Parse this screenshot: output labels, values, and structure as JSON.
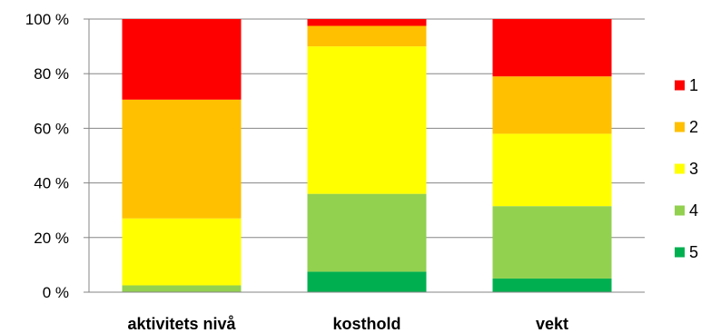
{
  "chart_data": {
    "type": "bar",
    "stacked": true,
    "percent_stacked": true,
    "categories": [
      "aktivitets nivå",
      "kosthold",
      "vekt"
    ],
    "series": [
      {
        "name": "5",
        "color": "#00B050",
        "values": [
          0,
          7.5,
          5
        ]
      },
      {
        "name": "4",
        "color": "#92D050",
        "values": [
          2.5,
          28.5,
          26.5
        ]
      },
      {
        "name": "3",
        "color": "#FFFF00",
        "values": [
          24.5,
          54,
          26.5
        ]
      },
      {
        "name": "2",
        "color": "#FFC000",
        "values": [
          43.5,
          7.5,
          21
        ]
      },
      {
        "name": "1",
        "color": "#FF0000",
        "values": [
          29.5,
          2.5,
          21
        ]
      }
    ],
    "yticks": [
      "0 %",
      "20 %",
      "40 %",
      "60 %",
      "80 %",
      "100 %"
    ],
    "ylim": [
      0,
      100
    ],
    "grid": true,
    "legend_position": "right",
    "legend_order": [
      "1",
      "2",
      "3",
      "4",
      "5"
    ],
    "title": "",
    "xlabel": "",
    "ylabel": ""
  }
}
